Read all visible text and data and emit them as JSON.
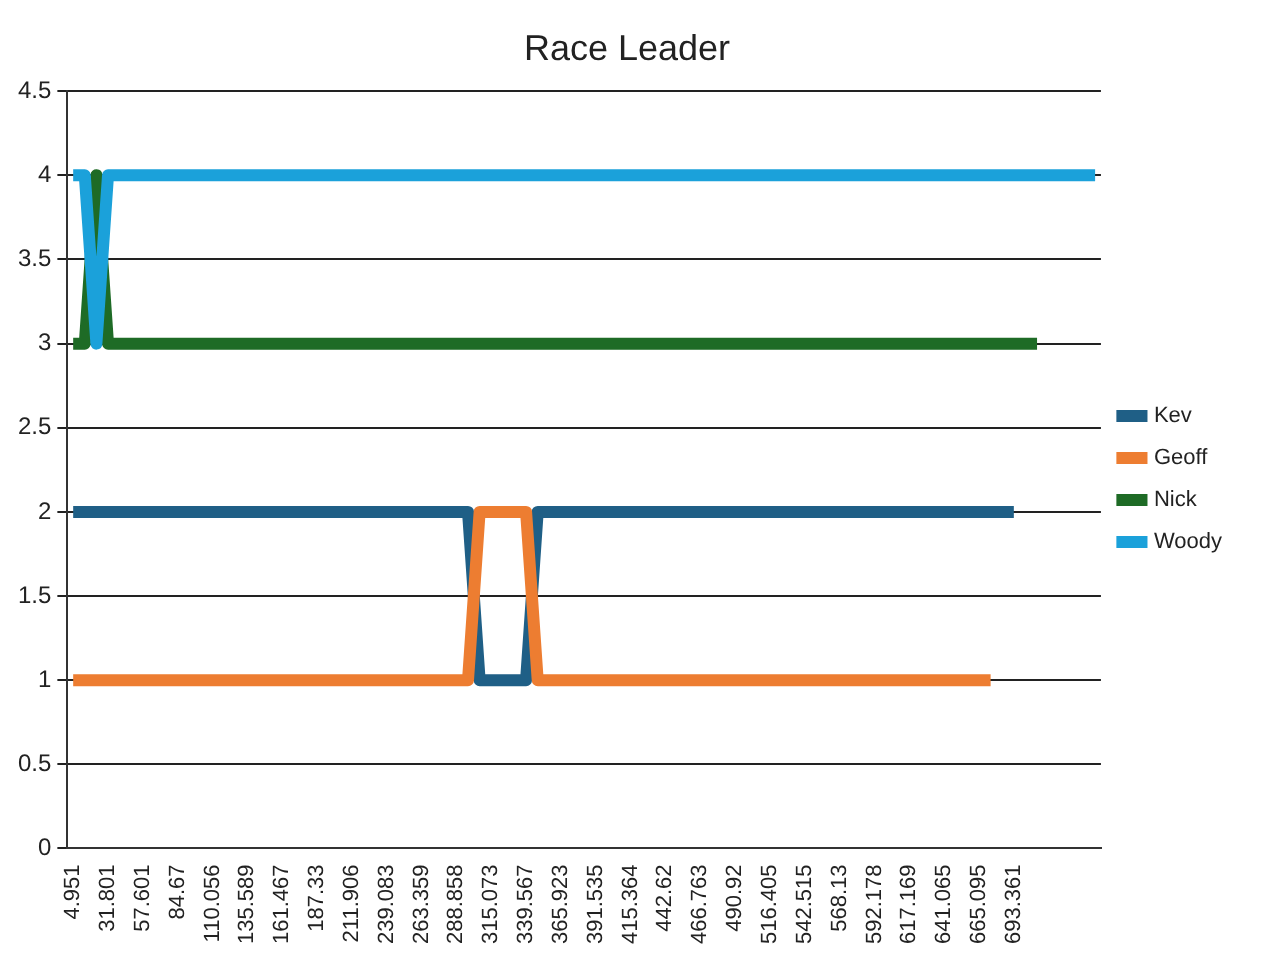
{
  "chart_data": {
    "type": "line",
    "title": "Race Leader",
    "categories": [
      "4.951",
      null,
      null,
      "31.801",
      null,
      null,
      "57.601",
      null,
      null,
      "84.67",
      null,
      null,
      "110.056",
      null,
      null,
      "135.589",
      null,
      null,
      "161.467",
      null,
      null,
      "187.33",
      null,
      null,
      "211.906",
      null,
      null,
      "239.083",
      null,
      null,
      "263.359",
      null,
      null,
      "288.858",
      null,
      null,
      "315.073",
      null,
      null,
      "339.567",
      null,
      null,
      "365.923",
      null,
      null,
      "391.535",
      null,
      null,
      "415.364",
      null,
      null,
      "442.62",
      null,
      null,
      "466.763",
      null,
      null,
      "490.92",
      null,
      null,
      "516.405",
      null,
      null,
      "542.515",
      null,
      null,
      "568.13",
      null,
      null,
      "592.178",
      null,
      null,
      "617.169",
      null,
      null,
      "641.065",
      null,
      null,
      "665.095",
      null,
      null,
      "693.361",
      null,
      null,
      null,
      null,
      null,
      null,
      null
    ],
    "series": [
      {
        "name": "Kev",
        "color": "#1f5f86",
        "values": [
          2,
          2,
          2,
          2,
          2,
          2,
          2,
          2,
          2,
          2,
          2,
          2,
          2,
          2,
          2,
          2,
          2,
          2,
          2,
          2,
          2,
          2,
          2,
          2,
          2,
          2,
          2,
          2,
          2,
          2,
          2,
          2,
          2,
          2,
          2,
          1,
          1,
          1,
          1,
          1,
          2,
          2,
          2,
          2,
          2,
          2,
          2,
          2,
          2,
          2,
          2,
          2,
          2,
          2,
          2,
          2,
          2,
          2,
          2,
          2,
          2,
          2,
          2,
          2,
          2,
          2,
          2,
          2,
          2,
          2,
          2,
          2,
          2,
          2,
          2,
          2,
          2,
          2,
          2,
          2,
          2,
          2,
          null,
          null,
          null,
          null,
          null,
          null,
          null
        ]
      },
      {
        "name": "Geoff",
        "color": "#ed7d31",
        "values": [
          1,
          1,
          1,
          1,
          1,
          1,
          1,
          1,
          1,
          1,
          1,
          1,
          1,
          1,
          1,
          1,
          1,
          1,
          1,
          1,
          1,
          1,
          1,
          1,
          1,
          1,
          1,
          1,
          1,
          1,
          1,
          1,
          1,
          1,
          1,
          2,
          2,
          2,
          2,
          2,
          1,
          1,
          1,
          1,
          1,
          1,
          1,
          1,
          1,
          1,
          1,
          1,
          1,
          1,
          1,
          1,
          1,
          1,
          1,
          1,
          1,
          1,
          1,
          1,
          1,
          1,
          1,
          1,
          1,
          1,
          1,
          1,
          1,
          1,
          1,
          1,
          1,
          1,
          1,
          1,
          null,
          null,
          null,
          null,
          null,
          null,
          null,
          null,
          null
        ]
      },
      {
        "name": "Nick",
        "color": "#1e6b26",
        "values": [
          3,
          3,
          4,
          3,
          3,
          3,
          3,
          3,
          3,
          3,
          3,
          3,
          3,
          3,
          3,
          3,
          3,
          3,
          3,
          3,
          3,
          3,
          3,
          3,
          3,
          3,
          3,
          3,
          3,
          3,
          3,
          3,
          3,
          3,
          3,
          3,
          3,
          3,
          3,
          3,
          3,
          3,
          3,
          3,
          3,
          3,
          3,
          3,
          3,
          3,
          3,
          3,
          3,
          3,
          3,
          3,
          3,
          3,
          3,
          3,
          3,
          3,
          3,
          3,
          3,
          3,
          3,
          3,
          3,
          3,
          3,
          3,
          3,
          3,
          3,
          3,
          3,
          3,
          3,
          3,
          3,
          3,
          3,
          3,
          null,
          null,
          null,
          null,
          null
        ]
      },
      {
        "name": "Woody",
        "color": "#1ba1da",
        "values": [
          4,
          4,
          3,
          4,
          4,
          4,
          4,
          4,
          4,
          4,
          4,
          4,
          4,
          4,
          4,
          4,
          4,
          4,
          4,
          4,
          4,
          4,
          4,
          4,
          4,
          4,
          4,
          4,
          4,
          4,
          4,
          4,
          4,
          4,
          4,
          4,
          4,
          4,
          4,
          4,
          4,
          4,
          4,
          4,
          4,
          4,
          4,
          4,
          4,
          4,
          4,
          4,
          4,
          4,
          4,
          4,
          4,
          4,
          4,
          4,
          4,
          4,
          4,
          4,
          4,
          4,
          4,
          4,
          4,
          4,
          4,
          4,
          4,
          4,
          4,
          4,
          4,
          4,
          4,
          4,
          4,
          4,
          4,
          4,
          4,
          4,
          4,
          4,
          4
        ]
      }
    ],
    "ylim": [
      0,
      4.5
    ],
    "yticks": [
      0,
      0.5,
      1,
      1.5,
      2,
      2.5,
      3,
      3.5,
      4,
      4.5
    ],
    "grid": "y",
    "legend": "right",
    "line_style": "solid"
  }
}
